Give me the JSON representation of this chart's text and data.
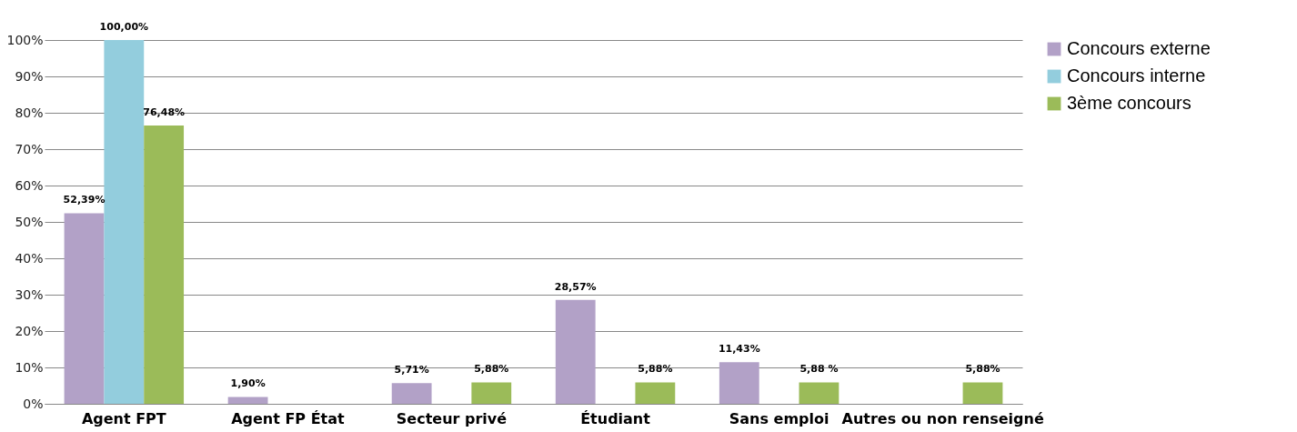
{
  "chart_data": {
    "type": "bar",
    "categories": [
      "Agent FPT",
      "Agent FP État",
      "Secteur privé",
      "Étudiant",
      "Sans emploi",
      "Autres ou non renseigné"
    ],
    "series": [
      {
        "name": "Concours externe",
        "color": "#b2a1c7",
        "values": [
          52.39,
          1.9,
          5.71,
          28.57,
          11.43,
          0
        ],
        "value_labels": [
          "52,39%",
          "1,90%",
          "5,71%",
          "28,57%",
          "11,43%",
          null
        ]
      },
      {
        "name": "Concours interne",
        "color": "#93cddd",
        "values": [
          100,
          0,
          0,
          0,
          0,
          0
        ],
        "value_labels": [
          "100,00%",
          null,
          null,
          null,
          null,
          null
        ]
      },
      {
        "name": "3ème concours",
        "color": "#9bbb59",
        "values": [
          76.48,
          0,
          5.88,
          5.88,
          5.88,
          5.88
        ],
        "value_labels": [
          "76,48%",
          null,
          "5,88%",
          "5,88%",
          "5,88 %",
          "5,88%"
        ]
      }
    ],
    "ylim": [
      0,
      100
    ],
    "yticks": [
      {
        "value": 0,
        "label": "0%"
      },
      {
        "value": 10,
        "label": "10%"
      },
      {
        "value": 20,
        "label": "20%"
      },
      {
        "value": 30,
        "label": "30%"
      },
      {
        "value": 40,
        "label": "40%"
      },
      {
        "value": 50,
        "label": "50%"
      },
      {
        "value": 60,
        "label": "60%"
      },
      {
        "value": 70,
        "label": "70%"
      },
      {
        "value": 80,
        "label": "80%"
      },
      {
        "value": 90,
        "label": "90%"
      },
      {
        "value": 100,
        "label": "100%"
      }
    ],
    "grid": "y",
    "legend": "right"
  }
}
